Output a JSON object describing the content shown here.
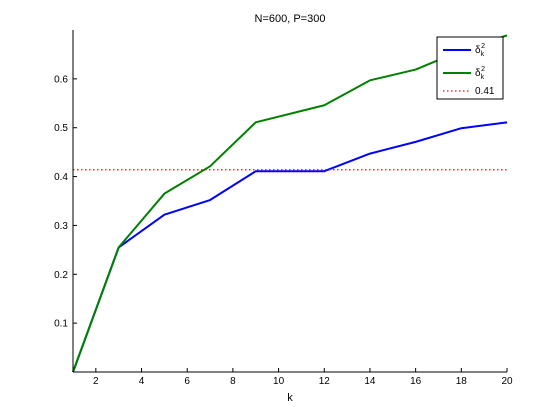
{
  "chart_data": {
    "type": "line",
    "title": "N=600, P=300",
    "xlabel": "k",
    "ylabel": "",
    "xlim": [
      1,
      20
    ],
    "ylim": [
      0,
      0.7
    ],
    "x_ticks": [
      2,
      4,
      6,
      8,
      10,
      12,
      14,
      16,
      18,
      20
    ],
    "y_ticks": [
      0.1,
      0.2,
      0.3,
      0.4,
      0.5,
      0.6
    ],
    "grid": false,
    "legend_position": "top-right",
    "series": [
      {
        "name": "δ_k^2",
        "label_base": "δ",
        "label_sub": "k",
        "label_sup": "2",
        "color": "#0000ff",
        "style": "solid",
        "x": [
          1,
          3,
          5,
          7,
          9,
          12,
          14,
          16,
          18,
          20
        ],
        "y": [
          0.0,
          0.255,
          0.322,
          0.352,
          0.411,
          0.411,
          0.447,
          0.471,
          0.499,
          0.511
        ]
      },
      {
        "name": "δ_k^2",
        "label_base": "δ",
        "label_sub": "k",
        "label_sup": "2",
        "color": "#008000",
        "style": "solid",
        "x": [
          1,
          3,
          5,
          7,
          9,
          12,
          14,
          16,
          18,
          20
        ],
        "y": [
          0.0,
          0.255,
          0.365,
          0.421,
          0.511,
          0.546,
          0.597,
          0.619,
          0.658,
          0.689
        ]
      },
      {
        "name": "0.41",
        "label_base": "0.41",
        "label_sub": "",
        "label_sup": "",
        "color": "#ff0000",
        "style": "dotted",
        "x": [
          1,
          20
        ],
        "y": [
          0.414,
          0.414
        ]
      }
    ]
  }
}
